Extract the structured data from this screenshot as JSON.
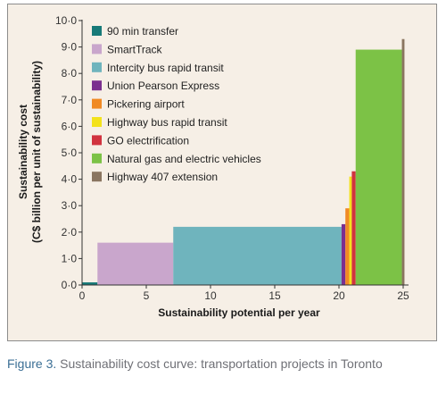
{
  "caption": {
    "label": "Figure 3.",
    "text": "Sustainability cost curve: transportation projects in Toronto"
  },
  "chart_data": {
    "type": "bar",
    "subtype": "cost-curve (variable-width bars)",
    "xlabel": "Sustainability potential per year",
    "ylabel_lines": [
      "Sustainability cost",
      "(C$ billion per unit of sustainability)"
    ],
    "xlim": [
      0,
      25
    ],
    "ylim": [
      0,
      10
    ],
    "x_ticks": [
      "0",
      "5",
      "10",
      "15",
      "20",
      "25"
    ],
    "y_ticks": [
      "0·0",
      "1·0",
      "2·0",
      "3·0",
      "4·0",
      "5·0",
      "6·0",
      "7·0",
      "8·0",
      "9·0",
      "10·0"
    ],
    "grid": false,
    "legend_position": "top-left",
    "series": [
      {
        "name": "90 min transfer",
        "x_start": 0.0,
        "x_end": 1.2,
        "value": 0.1,
        "color": "#177a78"
      },
      {
        "name": "SmartTrack",
        "x_start": 1.2,
        "x_end": 7.1,
        "value": 1.6,
        "color": "#c9a6cc"
      },
      {
        "name": "Intercity bus rapid transit",
        "x_start": 7.1,
        "x_end": 20.2,
        "value": 2.2,
        "color": "#6fb4bd"
      },
      {
        "name": "Union Pearson Express",
        "x_start": 20.2,
        "x_end": 20.5,
        "value": 2.3,
        "color": "#7b2f8f"
      },
      {
        "name": "Pickering airport",
        "x_start": 20.5,
        "x_end": 20.8,
        "value": 2.9,
        "color": "#f08a24"
      },
      {
        "name": "Highway bus rapid transit",
        "x_start": 20.8,
        "x_end": 21.0,
        "value": 4.1,
        "color": "#f3e21c"
      },
      {
        "name": "GO electrification",
        "x_start": 21.0,
        "x_end": 21.3,
        "value": 4.3,
        "color": "#d1333f"
      },
      {
        "name": "Natural gas and electric vehicles",
        "x_start": 21.3,
        "x_end": 24.9,
        "value": 8.9,
        "color": "#7cc246"
      },
      {
        "name": "Highway 407 extension",
        "x_start": 24.9,
        "x_end": 25.1,
        "value": 9.3,
        "color": "#8a7560"
      }
    ]
  }
}
